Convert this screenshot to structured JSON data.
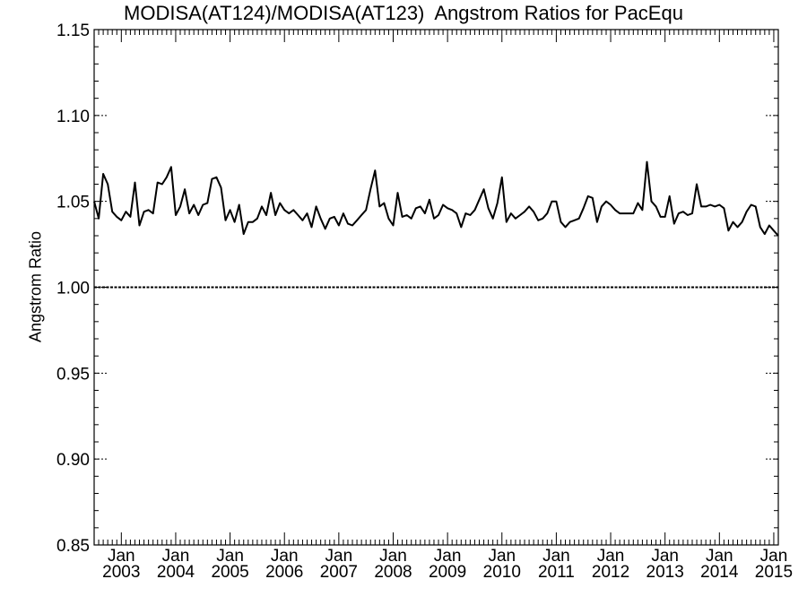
{
  "chart_data": {
    "type": "line",
    "title": "MODISA(AT124)/MODISA(AT123)  Angstrom Ratios for PacEqu",
    "xlabel": "",
    "ylabel": "Angstrom Ratio",
    "xlim": [
      "2002-07",
      "2015-02"
    ],
    "ylim": [
      0.85,
      1.15
    ],
    "y_ticks": [
      0.85,
      0.9,
      0.95,
      1.0,
      1.05,
      1.1,
      1.15
    ],
    "y_tick_labels": [
      "0.85",
      "0.90",
      "0.95",
      "1.00",
      "1.05",
      "1.10",
      "1.15"
    ],
    "x_ticks": [
      {
        "date": "2003-01",
        "month": "Jan",
        "year": "2003"
      },
      {
        "date": "2004-01",
        "month": "Jan",
        "year": "2004"
      },
      {
        "date": "2005-01",
        "month": "Jan",
        "year": "2005"
      },
      {
        "date": "2006-01",
        "month": "Jan",
        "year": "2006"
      },
      {
        "date": "2007-01",
        "month": "Jan",
        "year": "2007"
      },
      {
        "date": "2008-01",
        "month": "Jan",
        "year": "2008"
      },
      {
        "date": "2009-01",
        "month": "Jan",
        "year": "2009"
      },
      {
        "date": "2010-01",
        "month": "Jan",
        "year": "2010"
      },
      {
        "date": "2011-01",
        "month": "Jan",
        "year": "2011"
      },
      {
        "date": "2012-01",
        "month": "Jan",
        "year": "2012"
      },
      {
        "date": "2013-01",
        "month": "Jan",
        "year": "2013"
      },
      {
        "date": "2014-01",
        "month": "Jan",
        "year": "2014"
      },
      {
        "date": "2015-01",
        "month": "Jan",
        "year": "2015"
      }
    ],
    "reference_line": 1.0,
    "grid": false,
    "line_color": "#000000",
    "series": [
      {
        "x": [
          "2002-07",
          "2002-08",
          "2002-09",
          "2002-10",
          "2002-11",
          "2002-12",
          "2003-01",
          "2003-02",
          "2003-03",
          "2003-04",
          "2003-05",
          "2003-06",
          "2003-07",
          "2003-08",
          "2003-09",
          "2003-10",
          "2003-11",
          "2003-12",
          "2004-01",
          "2004-02",
          "2004-03",
          "2004-04",
          "2004-05",
          "2004-06",
          "2004-07",
          "2004-08",
          "2004-09",
          "2004-10",
          "2004-11",
          "2004-12",
          "2005-01",
          "2005-02",
          "2005-03",
          "2005-04",
          "2005-05",
          "2005-06",
          "2005-07",
          "2005-08",
          "2005-09",
          "2005-10",
          "2005-11",
          "2005-12",
          "2006-01",
          "2006-02",
          "2006-03",
          "2006-04",
          "2006-05",
          "2006-06",
          "2006-07",
          "2006-08",
          "2006-09",
          "2006-10",
          "2006-11",
          "2006-12",
          "2007-01",
          "2007-02",
          "2007-03",
          "2007-04",
          "2007-05",
          "2007-06",
          "2007-07",
          "2007-08",
          "2007-09",
          "2007-10",
          "2007-11",
          "2007-12",
          "2008-01",
          "2008-02",
          "2008-03",
          "2008-04",
          "2008-05",
          "2008-06",
          "2008-07",
          "2008-08",
          "2008-09",
          "2008-10",
          "2008-11",
          "2008-12",
          "2009-01",
          "2009-02",
          "2009-03",
          "2009-04",
          "2009-05",
          "2009-06",
          "2009-07",
          "2009-08",
          "2009-09",
          "2009-10",
          "2009-11",
          "2009-12",
          "2010-01",
          "2010-02",
          "2010-03",
          "2010-04",
          "2010-05",
          "2010-06",
          "2010-07",
          "2010-08",
          "2010-09",
          "2010-10",
          "2010-11",
          "2010-12",
          "2011-01",
          "2011-02",
          "2011-03",
          "2011-04",
          "2011-05",
          "2011-06",
          "2011-07",
          "2011-08",
          "2011-09",
          "2011-10",
          "2011-11",
          "2011-12",
          "2012-01",
          "2012-02",
          "2012-03",
          "2012-04",
          "2012-05",
          "2012-06",
          "2012-07",
          "2012-08",
          "2012-09",
          "2012-10",
          "2012-11",
          "2012-12",
          "2013-01",
          "2013-02",
          "2013-03",
          "2013-04",
          "2013-05",
          "2013-06",
          "2013-07",
          "2013-08",
          "2013-09",
          "2013-10",
          "2013-11",
          "2013-12",
          "2014-01",
          "2014-02",
          "2014-03",
          "2014-04",
          "2014-05",
          "2014-06",
          "2014-07",
          "2014-08",
          "2014-09",
          "2014-10",
          "2014-11",
          "2014-12",
          "2015-01",
          "2015-02"
        ],
        "y": [
          1.05,
          1.04,
          1.066,
          1.06,
          1.044,
          1.041,
          1.039,
          1.044,
          1.041,
          1.061,
          1.036,
          1.044,
          1.045,
          1.043,
          1.061,
          1.06,
          1.064,
          1.07,
          1.042,
          1.047,
          1.057,
          1.043,
          1.048,
          1.042,
          1.048,
          1.049,
          1.063,
          1.064,
          1.058,
          1.039,
          1.045,
          1.038,
          1.048,
          1.031,
          1.038,
          1.038,
          1.04,
          1.047,
          1.042,
          1.055,
          1.042,
          1.049,
          1.045,
          1.043,
          1.045,
          1.042,
          1.039,
          1.043,
          1.035,
          1.047,
          1.04,
          1.034,
          1.04,
          1.041,
          1.036,
          1.043,
          1.037,
          1.036,
          1.039,
          1.042,
          1.045,
          1.057,
          1.068,
          1.047,
          1.049,
          1.04,
          1.036,
          1.055,
          1.041,
          1.042,
          1.04,
          1.046,
          1.047,
          1.043,
          1.051,
          1.04,
          1.042,
          1.048,
          1.046,
          1.045,
          1.043,
          1.035,
          1.043,
          1.042,
          1.045,
          1.051,
          1.057,
          1.046,
          1.04,
          1.049,
          1.064,
          1.038,
          1.043,
          1.04,
          1.042,
          1.044,
          1.047,
          1.044,
          1.039,
          1.04,
          1.043,
          1.05,
          1.05,
          1.038,
          1.035,
          1.038,
          1.039,
          1.04,
          1.046,
          1.053,
          1.052,
          1.038,
          1.047,
          1.05,
          1.048,
          1.045,
          1.043,
          1.043,
          1.043,
          1.043,
          1.049,
          1.045,
          1.073,
          1.05,
          1.047,
          1.041,
          1.041,
          1.053,
          1.037,
          1.043,
          1.044,
          1.042,
          1.043,
          1.06,
          1.047,
          1.047,
          1.048,
          1.047,
          1.048,
          1.046,
          1.033,
          1.038,
          1.035,
          1.038,
          1.044,
          1.048,
          1.047,
          1.035,
          1.031,
          1.036,
          1.033,
          1.03
        ]
      }
    ]
  }
}
